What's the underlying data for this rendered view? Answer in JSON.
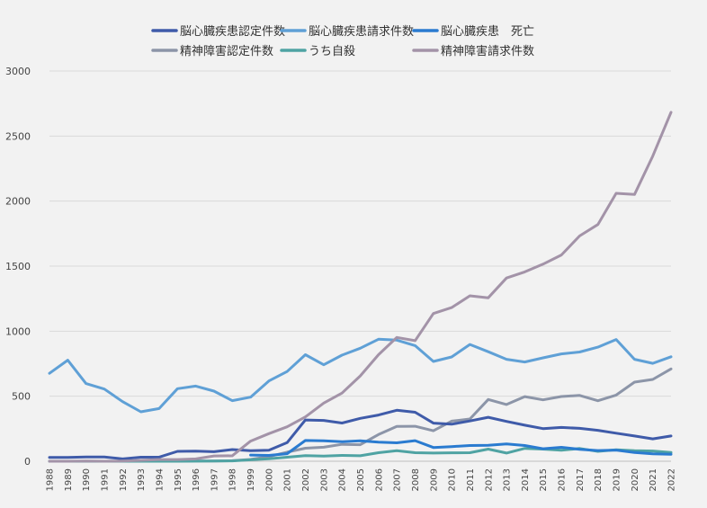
{
  "chart_data": {
    "type": "line",
    "title": "",
    "xlabel": "",
    "ylabel": "",
    "ylim": [
      0,
      3000
    ],
    "yticks": [
      0,
      500,
      1000,
      1500,
      2000,
      2500,
      3000
    ],
    "grid": true,
    "legend_position": "top",
    "categories": [
      "1988",
      "1989",
      "1990",
      "1991",
      "1992",
      "1993",
      "1994",
      "1995",
      "1996",
      "1997",
      "1998",
      "1999",
      "2000",
      "2001",
      "2002",
      "2003",
      "2004",
      "2005",
      "2006",
      "2007",
      "2008",
      "2009",
      "2010",
      "2011",
      "2012",
      "2013",
      "2014",
      "2015",
      "2016",
      "2017",
      "2018",
      "2019",
      "2020",
      "2021",
      "2022"
    ],
    "series": [
      {
        "name": "脳心臓疾患認定件数",
        "color": "#3f5ba9",
        "values": [
          29,
          30,
          33,
          33,
          18,
          31,
          32,
          76,
          78,
          73,
          90,
          81,
          85,
          143,
          317,
          314,
          294,
          330,
          355,
          392,
          377,
          293,
          285,
          310,
          338,
          306,
          277,
          251,
          260,
          253,
          238,
          216,
          194,
          172,
          194
        ]
      },
      {
        "name": "脳心臓疾患請求件数",
        "color": "#5fa0d6",
        "values": [
          676,
          777,
          597,
          555,
          458,
          380,
          405,
          558,
          578,
          539,
          466,
          493,
          617,
          690,
          819,
          742,
          816,
          869,
          938,
          931,
          889,
          767,
          802,
          898,
          842,
          784,
          763,
          795,
          825,
          840,
          877,
          936,
          784,
          753,
          803
        ]
      },
      {
        "name": "脳心臓疾患　死亡",
        "color": "#2a7bd0",
        "values": [
          null,
          null,
          null,
          null,
          null,
          null,
          null,
          null,
          null,
          null,
          null,
          48,
          45,
          58,
          160,
          157,
          150,
          157,
          147,
          142,
          158,
          106,
          113,
          121,
          123,
          133,
          121,
          96,
          107,
          92,
          82,
          86,
          67,
          57,
          54
        ]
      },
      {
        "name": "精神障害認定件数",
        "color": "#8c95a8",
        "values": [
          0,
          0,
          0,
          0,
          0,
          0,
          0,
          1,
          2,
          2,
          4,
          14,
          36,
          70,
          100,
          108,
          130,
          127,
          205,
          268,
          269,
          234,
          308,
          325,
          475,
          436,
          497,
          472,
          498,
          506,
          465,
          509,
          608,
          629,
          710
        ]
      },
      {
        "name": "うち自殺",
        "color": "#4fa3a3",
        "values": [
          0,
          0,
          0,
          0,
          0,
          0,
          0,
          0,
          1,
          2,
          3,
          11,
          19,
          31,
          43,
          40,
          45,
          42,
          66,
          81,
          66,
          63,
          65,
          66,
          93,
          63,
          99,
          93,
          84,
          98,
          76,
          88,
          81,
          79,
          67
        ]
      },
      {
        "name": "精神障害請求件数",
        "color": "#a393a8",
        "values": [
          0,
          0,
          2,
          0,
          2,
          7,
          13,
          13,
          18,
          41,
          42,
          155,
          212,
          265,
          341,
          447,
          524,
          656,
          819,
          952,
          927,
          1136,
          1181,
          1272,
          1257,
          1409,
          1456,
          1515,
          1586,
          1732,
          1820,
          2060,
          2051,
          2346,
          2683
        ]
      }
    ]
  }
}
